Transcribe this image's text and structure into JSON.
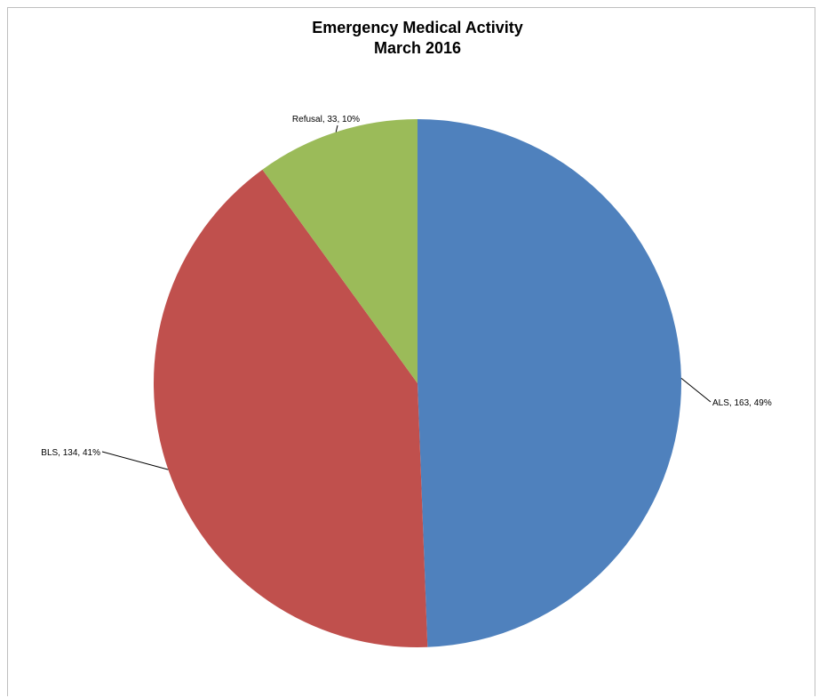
{
  "chart_data": {
    "type": "pie",
    "title": "Emergency Medical Activity",
    "subtitle": "March 2016",
    "slices": [
      {
        "label": "ALS",
        "value": 163,
        "percent": "49%",
        "color": "#4f81bd"
      },
      {
        "label": "BLS",
        "value": 134,
        "percent": "41%",
        "color": "#c0504d"
      },
      {
        "label": "Refusal",
        "value": 33,
        "percent": "10%",
        "color": "#9bbb59"
      }
    ]
  }
}
